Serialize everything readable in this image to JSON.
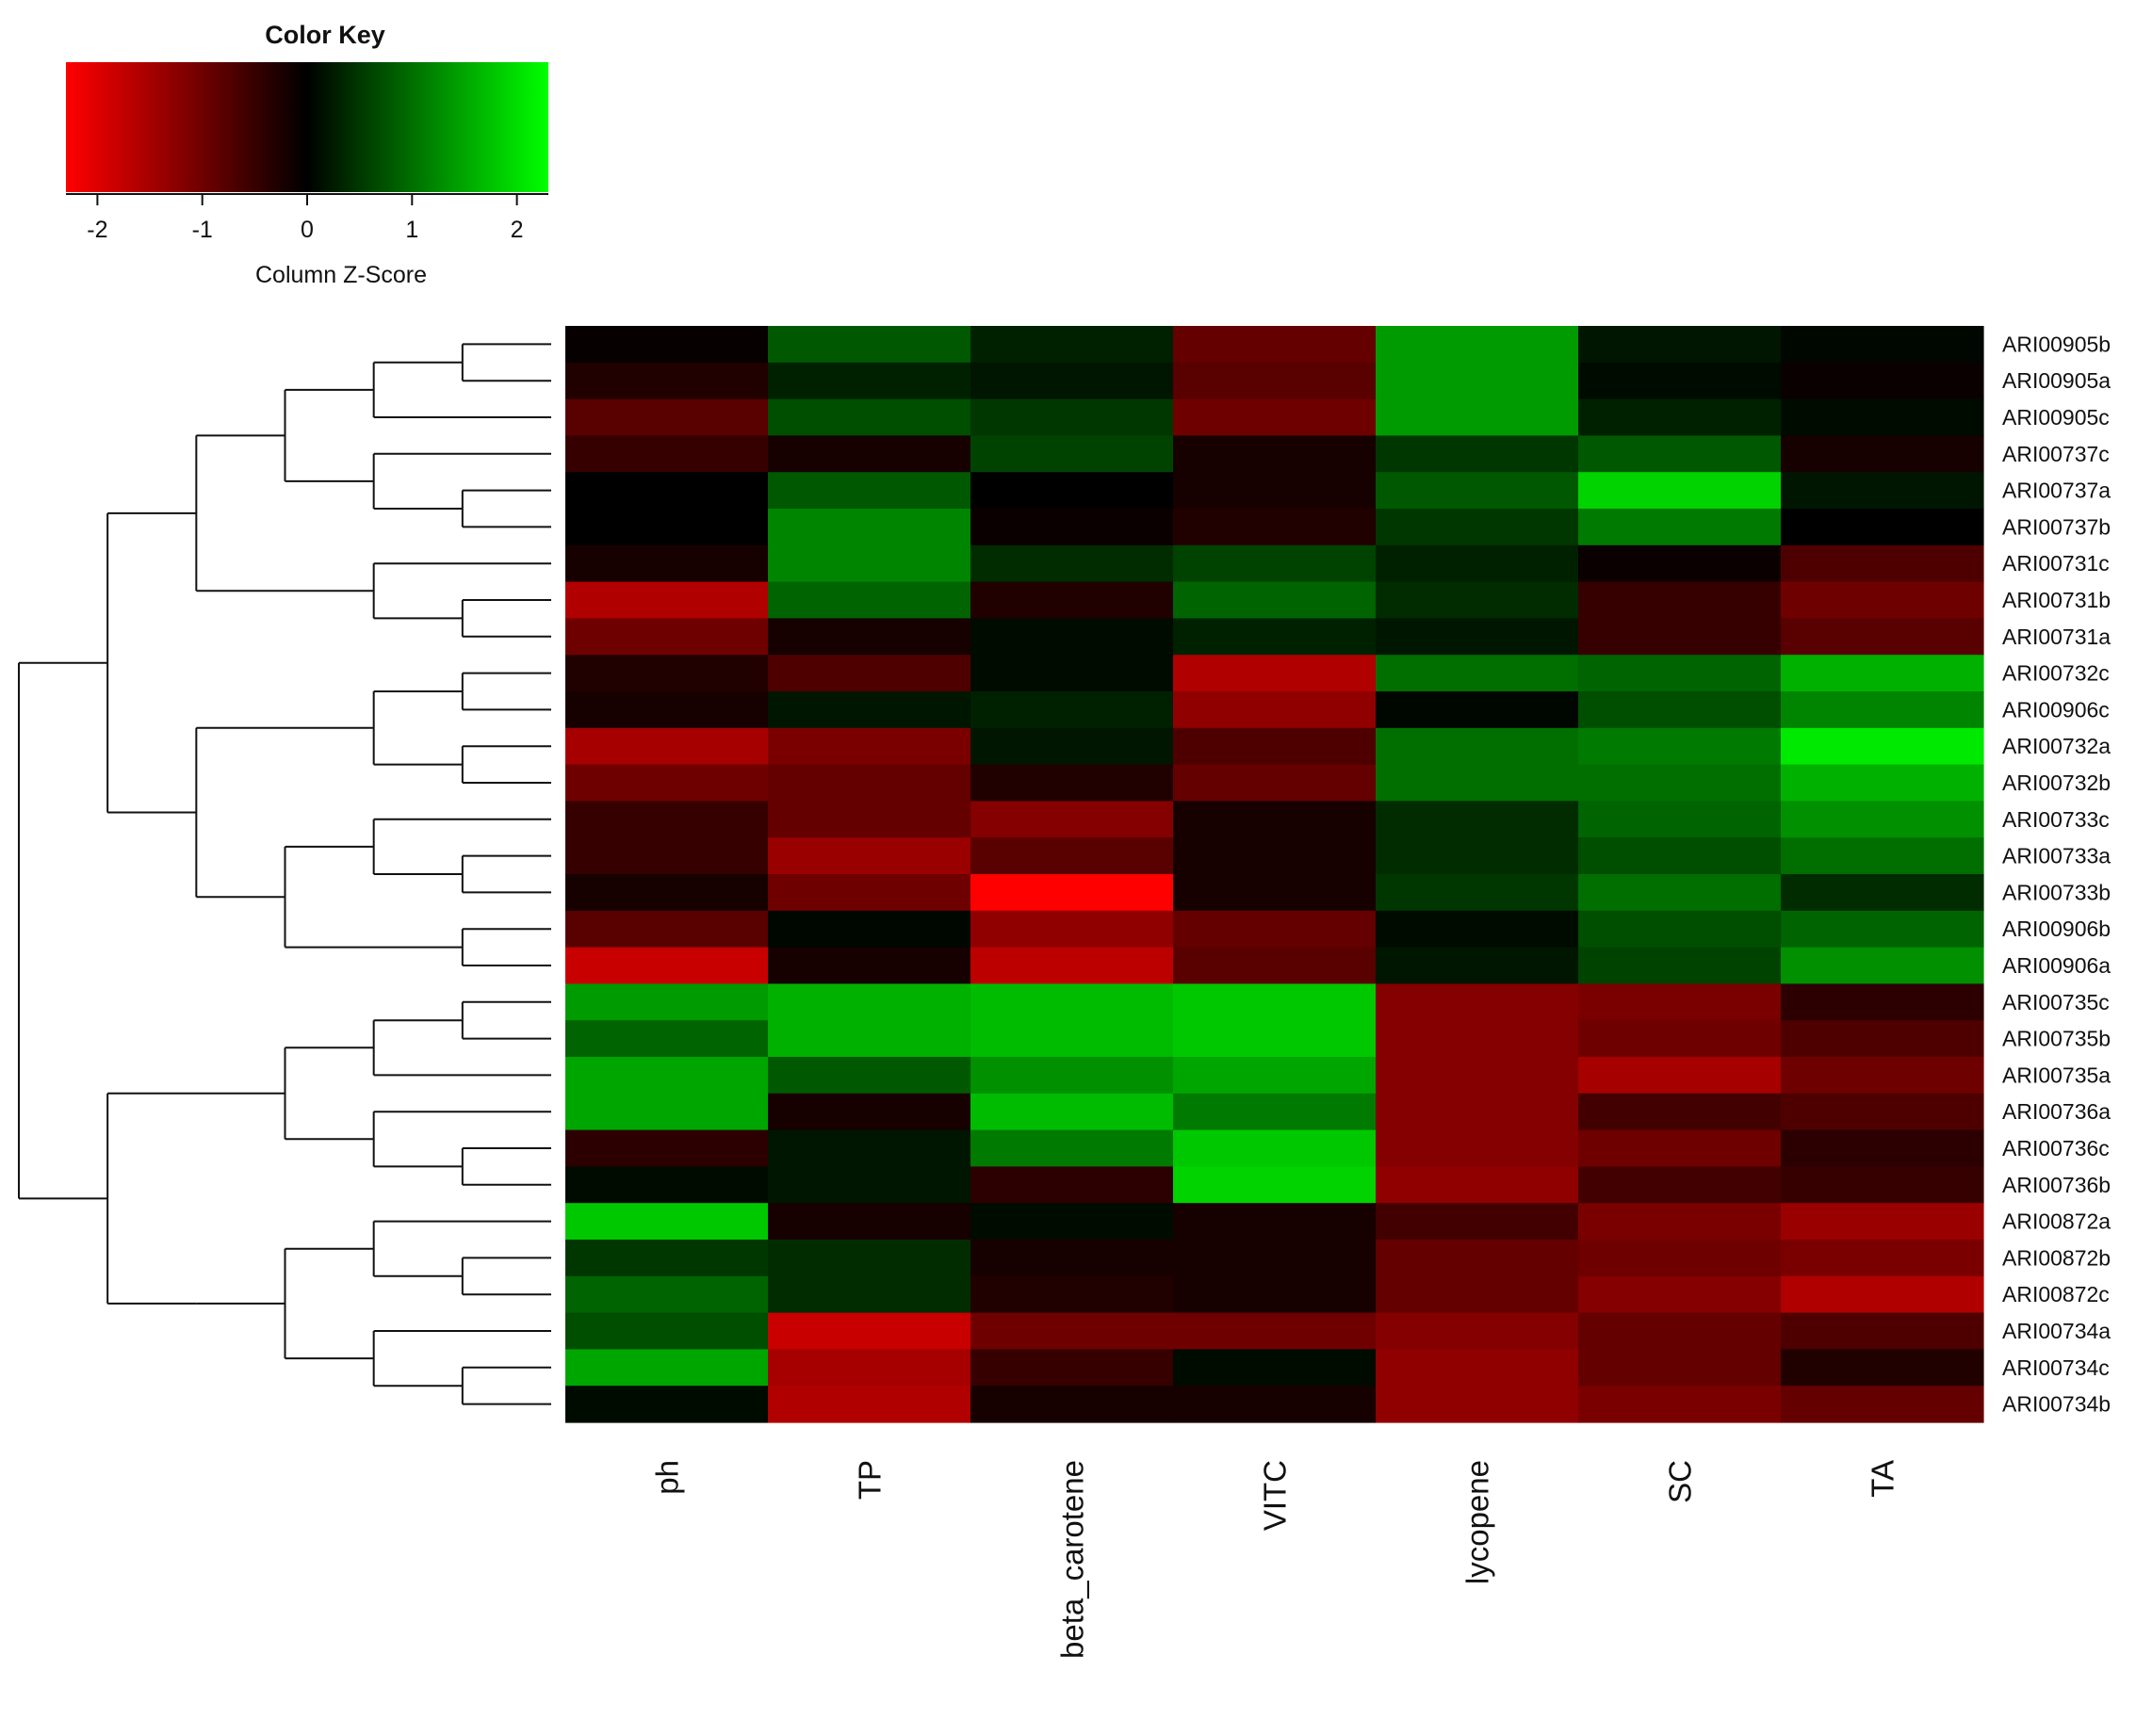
{
  "chart_data": {
    "type": "heatmap",
    "color_key": {
      "title": "Color Key",
      "xlabel": "Column Z-Score",
      "range": [
        -2.3,
        2.3
      ],
      "ticks": [
        -2,
        -1,
        0,
        1,
        2
      ],
      "tick_labels": [
        "-2",
        "-1",
        "0",
        "1",
        "2"
      ],
      "low_color": "#ff0000",
      "mid_color": "#000000",
      "high_color": "#00ff00"
    },
    "columns": [
      "ph",
      "TP",
      "beta_carotene",
      "VITC",
      "lycopene",
      "SC",
      "TA"
    ],
    "rows": [
      "ARI00905b",
      "ARI00905a",
      "ARI00905c",
      "ARI00737c",
      "ARI00737a",
      "ARI00737b",
      "ARI00731c",
      "ARI00731b",
      "ARI00731a",
      "ARI00732c",
      "ARI00906c",
      "ARI00732a",
      "ARI00732b",
      "ARI00733c",
      "ARI00733a",
      "ARI00733b",
      "ARI00906b",
      "ARI00906a",
      "ARI00735c",
      "ARI00735b",
      "ARI00735a",
      "ARI00736a",
      "ARI00736c",
      "ARI00736b",
      "ARI00872a",
      "ARI00872b",
      "ARI00872c",
      "ARI00734a",
      "ARI00734c",
      "ARI00734b"
    ],
    "z_scores": [
      [
        -0.05,
        0.8,
        0.3,
        -0.9,
        1.4,
        0.2,
        0.05
      ],
      [
        -0.3,
        0.3,
        0.2,
        -0.8,
        1.4,
        0.1,
        -0.1
      ],
      [
        -0.8,
        0.7,
        0.5,
        -1.0,
        1.4,
        0.3,
        0.1
      ],
      [
        -0.5,
        -0.2,
        0.6,
        -0.2,
        0.5,
        0.8,
        -0.2
      ],
      [
        0.0,
        0.8,
        0.0,
        -0.2,
        0.8,
        1.9,
        0.2
      ],
      [
        0.0,
        1.2,
        -0.1,
        -0.3,
        0.5,
        1.1,
        0.0
      ],
      [
        -0.2,
        1.2,
        0.4,
        0.6,
        0.3,
        -0.1,
        -0.7
      ],
      [
        -1.6,
        0.9,
        -0.3,
        0.9,
        0.4,
        -0.5,
        -1.0
      ],
      [
        -1.0,
        -0.2,
        0.1,
        0.3,
        0.2,
        -0.5,
        -0.8
      ],
      [
        -0.3,
        -0.7,
        0.1,
        -1.6,
        1.0,
        0.9,
        1.6
      ],
      [
        -0.2,
        0.2,
        0.3,
        -1.3,
        0.05,
        0.7,
        1.2
      ],
      [
        -1.5,
        -1.1,
        0.2,
        -0.7,
        1.0,
        1.1,
        2.1
      ],
      [
        -1.0,
        -0.9,
        -0.3,
        -0.9,
        1.0,
        1.0,
        1.6
      ],
      [
        -0.5,
        -0.9,
        -1.2,
        -0.2,
        0.4,
        0.9,
        1.3
      ],
      [
        -0.5,
        -1.4,
        -0.8,
        -0.2,
        0.4,
        0.7,
        1.0
      ],
      [
        -0.2,
        -1.0,
        -2.3,
        -0.2,
        0.5,
        1.0,
        0.4
      ],
      [
        -0.8,
        0.05,
        -1.3,
        -0.9,
        0.1,
        0.7,
        0.9
      ],
      [
        -1.8,
        -0.2,
        -1.7,
        -0.8,
        0.2,
        0.6,
        1.3
      ],
      [
        1.4,
        1.6,
        1.7,
        1.8,
        -1.2,
        -1.1,
        -0.4
      ],
      [
        0.9,
        1.6,
        1.7,
        1.8,
        -1.2,
        -1.0,
        -0.7
      ],
      [
        1.5,
        0.8,
        1.3,
        1.5,
        -1.2,
        -1.5,
        -1.0
      ],
      [
        1.5,
        -0.2,
        1.7,
        1.1,
        -1.2,
        -0.6,
        -0.7
      ],
      [
        -0.4,
        0.2,
        1.1,
        1.8,
        -1.2,
        -1.0,
        -0.4
      ],
      [
        0.1,
        0.2,
        -0.4,
        1.9,
        -1.3,
        -0.6,
        -0.5
      ],
      [
        1.8,
        -0.2,
        0.1,
        -0.2,
        -0.6,
        -1.1,
        -1.4
      ],
      [
        0.5,
        0.4,
        -0.2,
        -0.2,
        -0.9,
        -1.0,
        -1.1
      ],
      [
        0.9,
        0.4,
        -0.3,
        -0.2,
        -0.9,
        -1.2,
        -1.6
      ],
      [
        0.7,
        -1.8,
        -1.0,
        -1.0,
        -1.2,
        -0.9,
        -0.7
      ],
      [
        1.5,
        -1.5,
        -0.5,
        0.1,
        -1.3,
        -0.9,
        -0.3
      ],
      [
        0.1,
        -1.6,
        -0.2,
        -0.2,
        -1.3,
        -1.1,
        -0.9
      ]
    ],
    "row_dendrogram": "((((((ARI00905b,ARI00905a),ARI00905c),(ARI00737c,(ARI00737a,ARI00737b))),(ARI00731c,(ARI00731b,ARI00731a))),(((ARI00732c,ARI00906c),(ARI00732a,ARI00732b)),((ARI00733c,(ARI00733a,ARI00733b)),(ARI00906b,ARI00906a)))),((((ARI00735c,ARI00735b),ARI00735a),(ARI00736a,(ARI00736c,ARI00736b))),(((ARI00872a,(ARI00872b,ARI00872c)),(ARI00734a,(ARI00734c,ARI00734b))))))"
  }
}
